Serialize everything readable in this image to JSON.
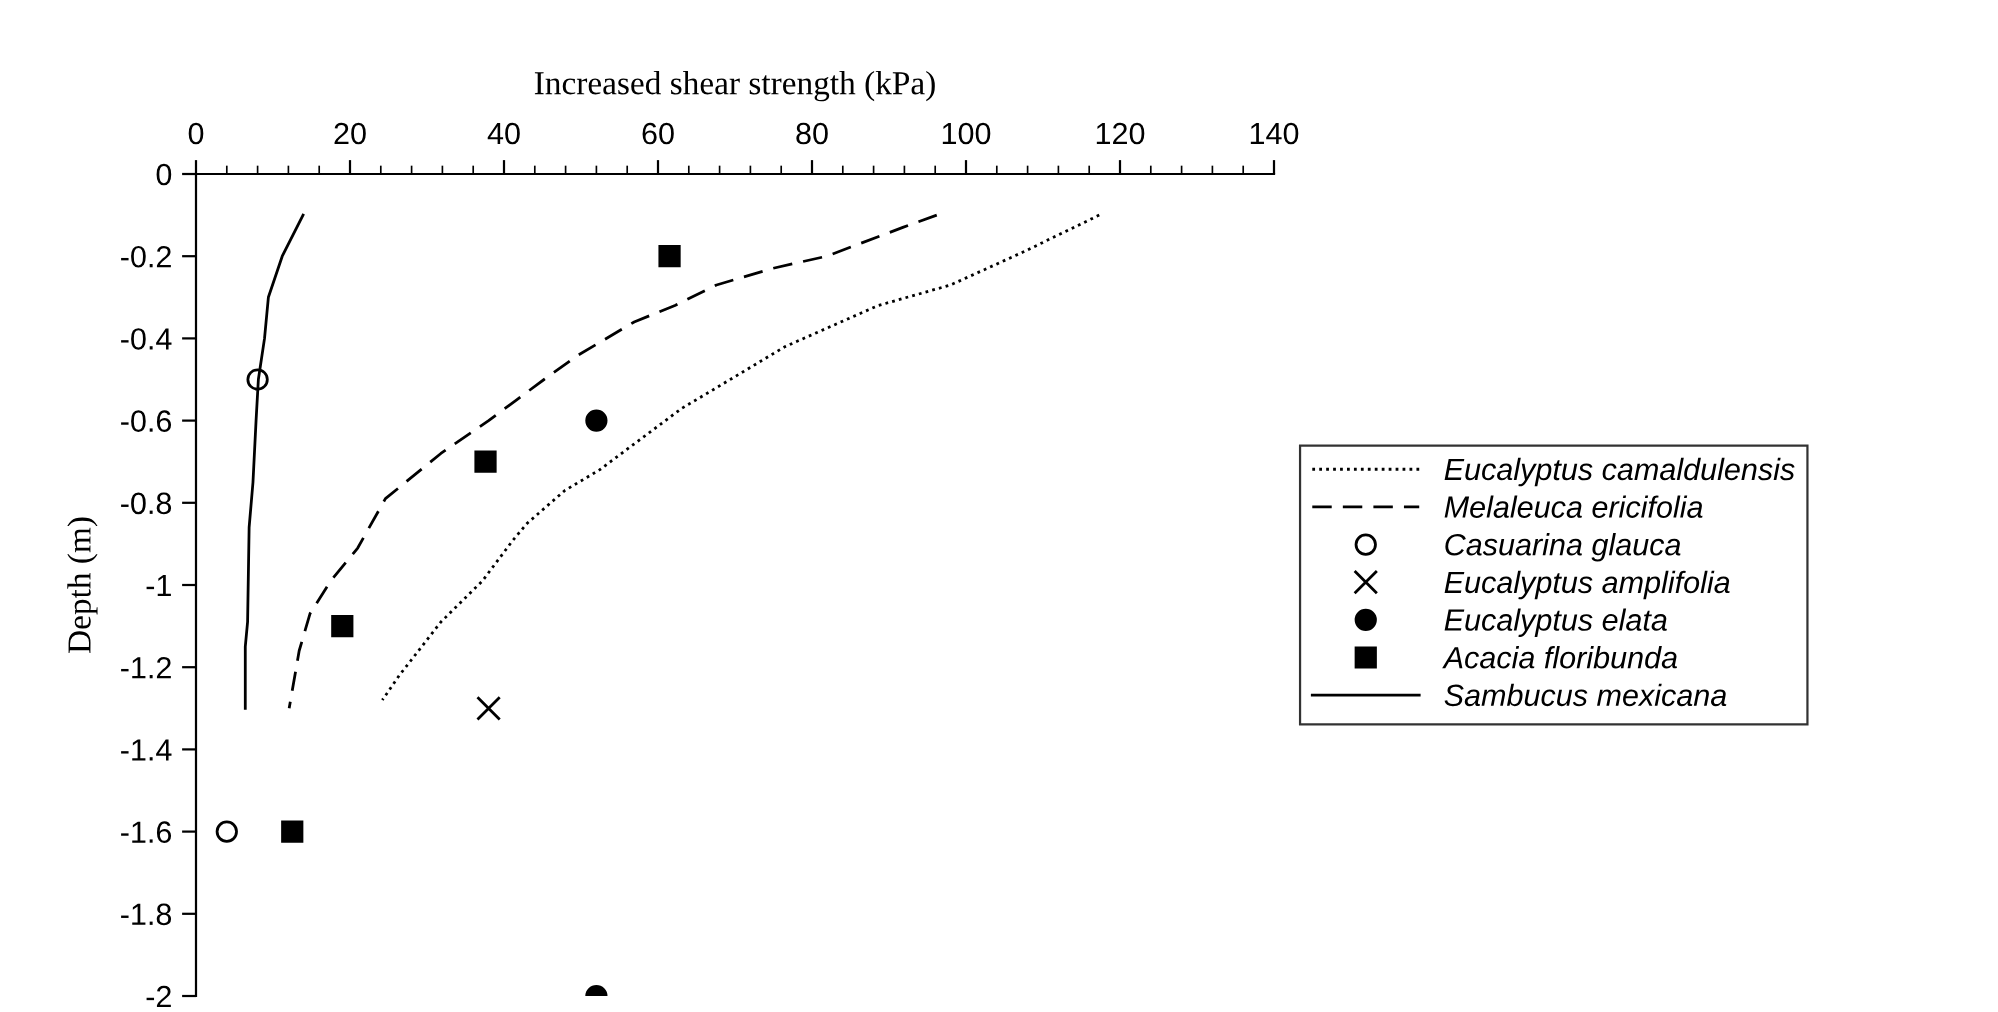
{
  "chart_data": {
    "type": "line",
    "xlabel": "Increased shear strength (kPa)",
    "ylabel": "Depth (m)",
    "xlim": [
      0,
      140
    ],
    "xticks": [
      0,
      20,
      40,
      60,
      80,
      100,
      120,
      140
    ],
    "ylim": [
      -2,
      0
    ],
    "yticks": [
      0,
      -0.2,
      -0.4,
      -0.6,
      -0.8,
      -1,
      -1.2,
      -1.4,
      -1.6,
      -1.8,
      -2
    ],
    "grid": false,
    "legend": "right",
    "series": [
      {
        "name": "Eucalyptus camaldulensis",
        "color": "#000000",
        "line_style": "dotted",
        "marker": "none",
        "x": [
          117.3,
          107.4,
          98.0,
          88.6,
          76.5,
          67.6,
          63.1,
          52.4,
          47.9,
          43.0,
          41.2,
          37.2,
          31.8,
          26.4,
          24.2
        ],
        "values": [
          -0.1,
          -0.19,
          -0.27,
          -0.32,
          -0.42,
          -0.52,
          -0.57,
          -0.72,
          -0.77,
          -0.85,
          -0.89,
          -0.99,
          -1.09,
          -1.22,
          -1.28
        ]
      },
      {
        "name": "Melaleuca ericifolia",
        "color": "#000000",
        "line_style": "dashed",
        "marker": "none",
        "x": [
          96.2,
          91.8,
          81.9,
          74.8,
          67.6,
          62.2,
          56.9,
          49.7,
          45.2,
          41.6,
          38.0,
          31.8,
          24.6,
          21.0,
          17.5,
          14.8,
          13.4,
          12.1
        ],
        "values": [
          -0.1,
          -0.13,
          -0.2,
          -0.23,
          -0.27,
          -0.32,
          -0.36,
          -0.44,
          -0.5,
          -0.55,
          -0.6,
          -0.68,
          -0.79,
          -0.91,
          -0.99,
          -1.07,
          -1.16,
          -1.3
        ]
      },
      {
        "name": "Casuarina glauca",
        "color": "#000000",
        "type": "scatter",
        "marker": "circle_open",
        "x": [
          8,
          4
        ],
        "values": [
          -0.5,
          -1.6
        ]
      },
      {
        "name": "Eucalyptus amplifolia",
        "color": "#000000",
        "type": "scatter",
        "marker": "cross",
        "x": [
          38
        ],
        "values": [
          -1.3
        ]
      },
      {
        "name": "Eucalyptus elata",
        "color": "#000000",
        "type": "scatter",
        "marker": "circle",
        "x": [
          52,
          52
        ],
        "values": [
          -0.6,
          -2
        ]
      },
      {
        "name": "Acacia floribunda",
        "color": "#000000",
        "type": "scatter",
        "marker": "square",
        "x": [
          61.5,
          37.6,
          19,
          12.5
        ],
        "values": [
          -0.2,
          -0.7,
          -1.1,
          -1.6
        ]
      },
      {
        "name": "Sambucus mexicana",
        "color": "#000000",
        "line_style": "solid",
        "marker": "none",
        "x": [
          13.9,
          11.2,
          9.4,
          8.9,
          8.1,
          7.8,
          7.4,
          6.9,
          6.7,
          6.4,
          6.4
        ],
        "values": [
          -0.1,
          -0.2,
          -0.3,
          -0.4,
          -0.5,
          -0.6,
          -0.75,
          -0.86,
          -1.09,
          -1.15,
          -1.3
        ]
      }
    ]
  }
}
